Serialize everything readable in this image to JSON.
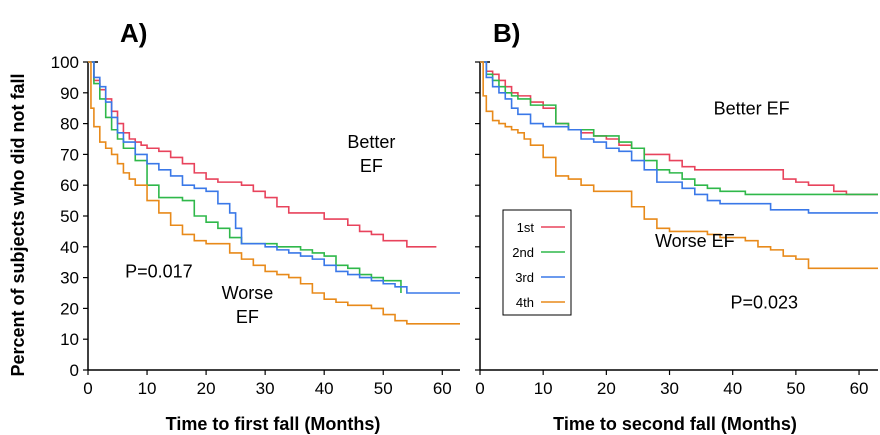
{
  "ylabel": "Percent of subjects who did not fall",
  "legend": [
    {
      "name": "1st",
      "color": "#e8435c"
    },
    {
      "name": "2nd",
      "color": "#2fb84a"
    },
    {
      "name": "3rd",
      "color": "#3a78e8"
    },
    {
      "name": "4th",
      "color": "#e88a1a"
    }
  ],
  "chart_data": [
    {
      "type": "line",
      "step": true,
      "panel_label": "A)",
      "xlabel": "Time to first fall (Months)",
      "ylabel": "Percent of subjects who did not fall",
      "xlim": [
        0,
        63
      ],
      "ylim": [
        0,
        100
      ],
      "xticks": [
        0,
        10,
        20,
        30,
        40,
        50,
        60
      ],
      "yticks": [
        0,
        10,
        20,
        30,
        40,
        50,
        60,
        70,
        80,
        90,
        100
      ],
      "annotations": [
        {
          "lines": [
            "Better",
            "EF"
          ],
          "x": 48,
          "y": 72
        },
        {
          "lines": [
            "Worse",
            "EF"
          ],
          "x": 27,
          "y": 23
        },
        {
          "lines": [
            "P=0.017"
          ],
          "x": 12,
          "y": 30
        }
      ],
      "series": [
        {
          "name": "1st",
          "color": "#e8435c",
          "x": [
            0,
            1,
            2,
            3,
            4,
            5,
            6,
            7,
            8,
            9,
            10,
            12,
            14,
            16,
            18,
            20,
            22,
            24,
            26,
            28,
            30,
            32,
            34,
            36,
            38,
            40,
            42,
            44,
            46,
            48,
            50,
            52,
            54,
            56,
            58,
            59
          ],
          "y": [
            100,
            94,
            91,
            88,
            84,
            80,
            77,
            75,
            74,
            73,
            72,
            71,
            69,
            67,
            64,
            62,
            61,
            61,
            60,
            58,
            56,
            53,
            51,
            51,
            51,
            49,
            49,
            47,
            45,
            44,
            42,
            42,
            40,
            40,
            40,
            40
          ]
        },
        {
          "name": "2nd",
          "color": "#2fb84a",
          "x": [
            0,
            1,
            2,
            3,
            4,
            5,
            6,
            8,
            10,
            12,
            14,
            16,
            18,
            20,
            22,
            24,
            26,
            28,
            30,
            32,
            34,
            36,
            38,
            40,
            42,
            44,
            46,
            48,
            50,
            52,
            53
          ],
          "y": [
            100,
            93,
            88,
            82,
            78,
            75,
            72,
            68,
            60,
            56,
            56,
            55,
            50,
            48,
            46,
            43,
            41,
            41,
            41,
            40,
            40,
            39,
            38,
            37,
            34,
            33,
            31,
            30,
            29,
            29,
            25
          ]
        },
        {
          "name": "3rd",
          "color": "#3a78e8",
          "x": [
            0,
            1,
            2,
            3,
            4,
            5,
            6,
            8,
            10,
            12,
            14,
            16,
            18,
            20,
            22,
            24,
            25,
            26,
            28,
            30,
            32,
            34,
            36,
            38,
            40,
            42,
            44,
            46,
            48,
            50,
            52,
            54,
            56,
            58,
            60,
            63
          ],
          "y": [
            100,
            95,
            92,
            87,
            82,
            77,
            74,
            70,
            67,
            65,
            63,
            60,
            59,
            58,
            54,
            51,
            46,
            41,
            41,
            40,
            39,
            38,
            37,
            36,
            34,
            32,
            31,
            30,
            29,
            28,
            27,
            25,
            25,
            25,
            25,
            25
          ]
        },
        {
          "name": "4th",
          "color": "#e88a1a",
          "x": [
            0,
            0.5,
            1,
            2,
            3,
            4,
            5,
            6,
            7,
            8,
            10,
            12,
            14,
            16,
            18,
            20,
            22,
            24,
            26,
            28,
            30,
            32,
            34,
            36,
            38,
            40,
            42,
            44,
            46,
            48,
            50,
            52,
            54,
            56,
            58,
            63
          ],
          "y": [
            100,
            85,
            79,
            74,
            72,
            70,
            67,
            64,
            62,
            60,
            55,
            51,
            47,
            44,
            42,
            41,
            41,
            38,
            36,
            34,
            32,
            31,
            30,
            28,
            25,
            23,
            22,
            21,
            21,
            20,
            18,
            16,
            15,
            15,
            15,
            15
          ]
        }
      ]
    },
    {
      "type": "line",
      "step": true,
      "panel_label": "B)",
      "xlabel": "Time to second fall (Months)",
      "ylabel": "",
      "xlim": [
        0,
        63
      ],
      "ylim": [
        0,
        100
      ],
      "xticks": [
        0,
        10,
        20,
        30,
        40,
        50,
        60
      ],
      "yticks": [
        0,
        10,
        20,
        30,
        40,
        50,
        60,
        70,
        80,
        90,
        100
      ],
      "annotations": [
        {
          "lines": [
            "Better EF"
          ],
          "x": 43,
          "y": 83
        },
        {
          "lines": [
            "Worse EF"
          ],
          "x": 34,
          "y": 40
        },
        {
          "lines": [
            "P=0.023"
          ],
          "x": 45,
          "y": 20
        }
      ],
      "series": [
        {
          "name": "1st",
          "color": "#e8435c",
          "x": [
            0,
            1,
            2,
            3,
            4,
            5,
            6,
            8,
            10,
            12,
            14,
            16,
            18,
            20,
            22,
            24,
            26,
            28,
            30,
            32,
            34,
            36,
            38,
            40,
            42,
            44,
            46,
            48,
            50,
            52,
            54,
            56,
            58,
            60,
            63
          ],
          "y": [
            100,
            97,
            96,
            94,
            92,
            90,
            89,
            87,
            85,
            80,
            78,
            77,
            76,
            75,
            73,
            72,
            70,
            70,
            68,
            66,
            65,
            65,
            65,
            65,
            65,
            65,
            65,
            62,
            61,
            60,
            60,
            58,
            57,
            57,
            57
          ]
        },
        {
          "name": "2nd",
          "color": "#2fb84a",
          "x": [
            0,
            1,
            2,
            3,
            4,
            5,
            6,
            8,
            10,
            12,
            14,
            16,
            18,
            20,
            22,
            24,
            26,
            28,
            30,
            32,
            34,
            36,
            38,
            40,
            42,
            44,
            46,
            48,
            50,
            52,
            54,
            56,
            58,
            60,
            63
          ],
          "y": [
            100,
            96,
            94,
            92,
            90,
            89,
            88,
            86,
            86,
            80,
            78,
            78,
            76,
            76,
            74,
            72,
            68,
            65,
            64,
            62,
            60,
            59,
            58,
            58,
            57,
            57,
            57,
            57,
            57,
            57,
            57,
            57,
            57,
            57,
            57
          ]
        },
        {
          "name": "3rd",
          "color": "#3a78e8",
          "x": [
            0,
            1,
            2,
            3,
            4,
            5,
            6,
            8,
            10,
            12,
            14,
            16,
            18,
            20,
            22,
            24,
            26,
            28,
            30,
            32,
            34,
            36,
            38,
            40,
            42,
            44,
            46,
            48,
            50,
            52,
            54,
            56,
            58,
            60,
            63
          ],
          "y": [
            100,
            95,
            92,
            90,
            88,
            85,
            83,
            80,
            79,
            79,
            78,
            75,
            74,
            72,
            71,
            68,
            65,
            61,
            61,
            59,
            57,
            55,
            54,
            54,
            54,
            54,
            52,
            52,
            52,
            51,
            51,
            51,
            51,
            51,
            51
          ]
        },
        {
          "name": "4th",
          "color": "#e88a1a",
          "x": [
            0,
            0.5,
            1,
            2,
            3,
            4,
            5,
            6,
            7,
            8,
            10,
            12,
            14,
            16,
            18,
            20,
            22,
            24,
            26,
            28,
            30,
            32,
            34,
            36,
            38,
            40,
            42,
            44,
            46,
            48,
            50,
            52,
            54,
            56,
            58,
            63
          ],
          "y": [
            100,
            89,
            84,
            81,
            80,
            79,
            78,
            77,
            75,
            73,
            69,
            63,
            62,
            60,
            58,
            58,
            58,
            53,
            49,
            46,
            45,
            45,
            45,
            44,
            43,
            43,
            42,
            40,
            39,
            37,
            36,
            33,
            33,
            33,
            33,
            33
          ]
        }
      ]
    }
  ]
}
